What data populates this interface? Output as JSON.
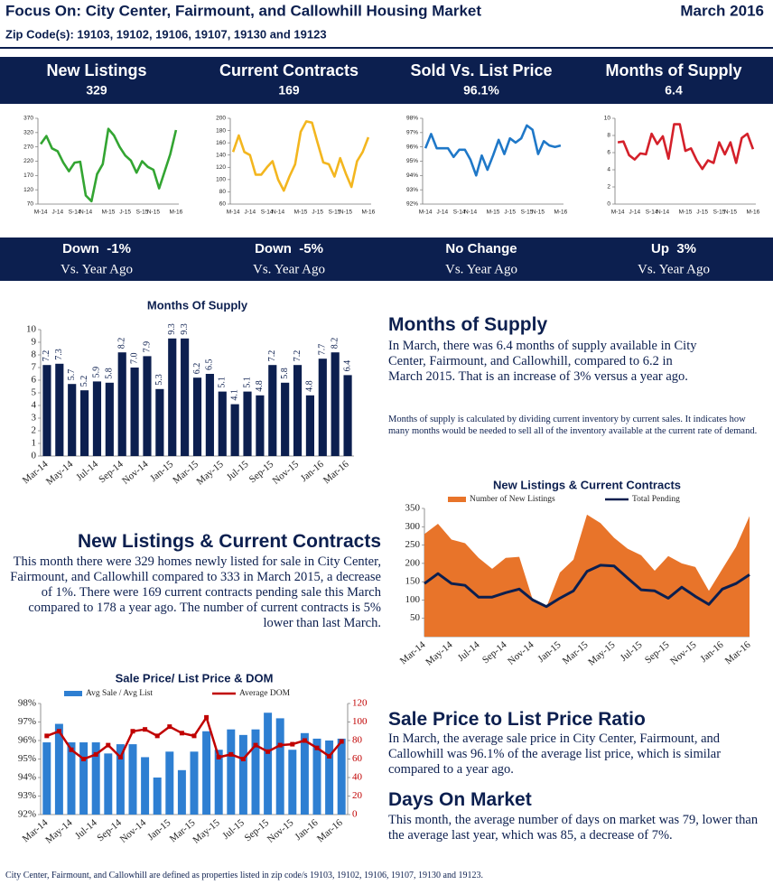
{
  "header": {
    "title": "Focus On: City Center, Fairmount, and Callowhill Housing Market",
    "date": "March 2016",
    "subtitle": "Zip Code(s): 19103, 19102, 19106, 19107, 19130 and 19123"
  },
  "kpis": [
    {
      "title": "New Listings",
      "value": "329",
      "change": "Down  -1%",
      "compare": "Vs. Year Ago"
    },
    {
      "title": "Current Contracts",
      "value": "169",
      "change": "Down  -5%",
      "compare": "Vs. Year Ago"
    },
    {
      "title": "Sold Vs. List Price",
      "value": "96.1%",
      "change": "No Change",
      "compare": "Vs. Year Ago"
    },
    {
      "title": "Months of Supply",
      "value": "6.4",
      "change": "Up  3%",
      "compare": "Vs. Year Ago"
    }
  ],
  "chart_data": [
    {
      "type": "line",
      "categories": [
        "M-14",
        null,
        null,
        "J-14",
        null,
        null,
        "S-14",
        null,
        "N-14",
        null,
        null,
        null,
        "M-15",
        null,
        null,
        "J-15",
        null,
        null,
        "S-15",
        null,
        "N-15",
        null,
        null,
        null,
        "M-16"
      ],
      "values": [
        280,
        308,
        265,
        255,
        215,
        185,
        215,
        218,
        100,
        80,
        175,
        210,
        333,
        310,
        270,
        240,
        222,
        180,
        220,
        200,
        190,
        125,
        185,
        245,
        329
      ],
      "color": "#33a532",
      "ylim": [
        70,
        370
      ],
      "yticks": [
        70,
        120,
        170,
        220,
        270,
        320,
        370
      ]
    },
    {
      "type": "line",
      "categories": [
        "M-14",
        null,
        null,
        "J-14",
        null,
        null,
        "S-14",
        null,
        "N-14",
        null,
        null,
        null,
        "M-15",
        null,
        null,
        "J-15",
        null,
        null,
        "S-15",
        null,
        "N-15",
        null,
        null,
        null,
        "M-16"
      ],
      "values": [
        145,
        172,
        145,
        140,
        108,
        108,
        120,
        130,
        100,
        82,
        105,
        125,
        178,
        195,
        193,
        160,
        128,
        125,
        105,
        135,
        110,
        88,
        130,
        145,
        169
      ],
      "color": "#f3b61f",
      "ylim": [
        60,
        200
      ],
      "yticks": [
        60,
        80,
        100,
        120,
        140,
        160,
        180,
        200
      ]
    },
    {
      "type": "line",
      "categories": [
        "M-14",
        null,
        null,
        "J-14",
        null,
        null,
        "S-14",
        null,
        "N-14",
        null,
        null,
        null,
        "M-15",
        null,
        null,
        "J-15",
        null,
        null,
        "S-15",
        null,
        "N-15",
        null,
        null,
        null,
        "M-16"
      ],
      "values": [
        95.9,
        96.9,
        95.9,
        95.9,
        95.9,
        95.3,
        95.8,
        95.8,
        95.1,
        94.0,
        95.4,
        94.4,
        95.4,
        96.5,
        95.5,
        96.6,
        96.3,
        96.6,
        97.5,
        97.2,
        95.5,
        96.4,
        96.1,
        96.0,
        96.1
      ],
      "color": "#1f78c8",
      "ylim": [
        92,
        98
      ],
      "yticks": [
        {
          "value": 92,
          "label": "92%"
        },
        {
          "value": 93,
          "label": "93%"
        },
        {
          "value": 94,
          "label": "94%"
        },
        {
          "value": 95,
          "label": "95%"
        },
        {
          "value": 96,
          "label": "96%"
        },
        {
          "value": 97,
          "label": "97%"
        },
        {
          "value": 98,
          "label": "98%"
        }
      ]
    },
    {
      "type": "line",
      "categories": [
        "M-14",
        null,
        null,
        "J-14",
        null,
        null,
        "S-14",
        null,
        "N-14",
        null,
        null,
        null,
        "M-15",
        null,
        null,
        "J-15",
        null,
        null,
        "S-15",
        null,
        "N-15",
        null,
        null,
        null,
        "M-16"
      ],
      "values": [
        7.2,
        7.3,
        5.7,
        5.2,
        5.9,
        5.8,
        8.2,
        7.0,
        7.9,
        5.3,
        9.3,
        9.3,
        6.2,
        6.5,
        5.1,
        4.1,
        5.1,
        4.8,
        7.2,
        5.8,
        7.2,
        4.8,
        7.7,
        8.2,
        6.4
      ],
      "color": "#d4202a",
      "ylim": [
        0,
        10
      ],
      "yticks": [
        0,
        2,
        4,
        6,
        8,
        10
      ]
    },
    {
      "type": "bar",
      "title": "Months Of Supply",
      "categories": [
        "Mar-14",
        null,
        "May-14",
        null,
        "Jul-14",
        null,
        "Sep-14",
        null,
        "Nov-14",
        null,
        "Jan-15",
        null,
        "Mar-15",
        null,
        "May-15",
        null,
        "Jul-15",
        null,
        "Sep-15",
        null,
        "Nov-15",
        null,
        "Jan-16",
        null,
        "Mar-16"
      ],
      "values": [
        7.2,
        7.3,
        5.7,
        5.2,
        5.9,
        5.8,
        8.2,
        7.0,
        7.9,
        5.3,
        9.3,
        9.3,
        6.2,
        6.5,
        5.1,
        4.1,
        5.1,
        4.8,
        7.2,
        5.8,
        7.2,
        4.8,
        7.7,
        8.2,
        6.4
      ],
      "value_labels": [
        "7.2",
        "7.3",
        "5.7",
        "5.2",
        "5.9",
        "5.8",
        "8.2",
        "7.0",
        "7.9",
        "5.3",
        "9.3",
        "9.3",
        "6.2",
        "6.5",
        "5.1",
        "4.1",
        "5.1",
        "4.8",
        "7.2",
        "5.8",
        "7.2",
        "4.8",
        "7.7",
        "8.2",
        "6.4"
      ],
      "color": "#0c1f4f",
      "ylim": [
        0,
        10
      ],
      "yticks": [
        0,
        1,
        2,
        3,
        4,
        5,
        6,
        7,
        8,
        9,
        10
      ]
    },
    {
      "type": "combo",
      "title": "New Listings & Current Contracts",
      "legend": "top",
      "categories": [
        "Mar-14",
        null,
        "May-14",
        null,
        "Jul-14",
        null,
        "Sep-14",
        null,
        "Nov-14",
        null,
        "Jan-15",
        null,
        "Mar-15",
        null,
        "May-15",
        null,
        "Jul-15",
        null,
        "Sep-15",
        null,
        "Nov-15",
        null,
        "Jan-16",
        null,
        "Mar-16"
      ],
      "series": [
        {
          "name": "Number of New Listings",
          "type": "area",
          "color": "#e8742a",
          "values": [
            280,
            308,
            265,
            255,
            215,
            185,
            215,
            218,
            100,
            80,
            175,
            210,
            333,
            310,
            270,
            240,
            222,
            180,
            220,
            200,
            190,
            125,
            185,
            245,
            329
          ]
        },
        {
          "name": "Total Pending",
          "type": "line",
          "color": "#0c1f4f",
          "values": [
            145,
            172,
            145,
            140,
            108,
            108,
            120,
            130,
            100,
            82,
            105,
            125,
            178,
            195,
            193,
            160,
            128,
            125,
            105,
            135,
            110,
            88,
            130,
            145,
            169
          ]
        }
      ],
      "ylim": [
        0,
        350
      ],
      "yticks": [
        50,
        100,
        150,
        200,
        250,
        300,
        350
      ]
    },
    {
      "type": "combo",
      "title": "Sale Price/ List Price & DOM",
      "legend": "top",
      "categories": [
        "Mar-14",
        null,
        "May-14",
        null,
        "Jul-14",
        null,
        "Sep-14",
        null,
        "Nov-14",
        null,
        "Jan-15",
        null,
        "Mar-15",
        null,
        "May-15",
        null,
        "Jul-15",
        null,
        "Sep-15",
        null,
        "Nov-15",
        null,
        "Jan-16",
        null,
        "Mar-16"
      ],
      "series": [
        {
          "name": "Avg Sale / Avg List",
          "type": "bar",
          "color": "#2e7fd2",
          "values": [
            95.9,
            96.9,
            95.9,
            95.9,
            95.9,
            95.3,
            95.8,
            95.8,
            95.1,
            94.0,
            95.4,
            94.4,
            95.4,
            96.5,
            95.5,
            96.6,
            96.3,
            96.6,
            97.5,
            97.2,
            95.5,
            96.4,
            96.1,
            96.0,
            96.1
          ]
        },
        {
          "name": "Average DOM",
          "type": "line",
          "axis": "y2",
          "markers": true,
          "color": "#c00000",
          "values": [
            85,
            90,
            70,
            60,
            65,
            75,
            62,
            90,
            92,
            85,
            95,
            88,
            85,
            105,
            62,
            65,
            60,
            75,
            68,
            75,
            76,
            80,
            72,
            63,
            79
          ]
        }
      ],
      "ylim": [
        92,
        98
      ],
      "yticks": [
        {
          "value": 92,
          "label": "92%"
        },
        {
          "value": 93,
          "label": "93%"
        },
        {
          "value": 94,
          "label": "94%"
        },
        {
          "value": 95,
          "label": "95%"
        },
        {
          "value": 96,
          "label": "96%"
        },
        {
          "value": 97,
          "label": "97%"
        },
        {
          "value": 98,
          "label": "98%"
        }
      ],
      "y2lim": [
        0,
        120
      ],
      "y2ticks": [
        0,
        20,
        40,
        60,
        80,
        100,
        120
      ]
    }
  ],
  "sections": {
    "months_supply": {
      "heading": "Months of Supply",
      "body": "In March, there was 6.4 months of supply available in City Center, Fairmount, and Callowhill, compared to 6.2 in March 2015. That is an increase of 3% versus a year ago.",
      "note": "Months of supply is calculated by dividing current inventory by current sales. It indicates how many months would be needed to sell all of the inventory available at the current rate of demand."
    },
    "new_listings": {
      "heading": "New Listings & Current Contracts",
      "body": "This month there were 329 homes newly listed for sale in City Center, Fairmount, and Callowhill compared to 333 in March 2015, a decrease of 1%. There were 169 current contracts pending sale this March compared to 178 a year ago. The number of current contracts is 5% lower than last March."
    },
    "sale_price": {
      "heading": "Sale Price to List Price Ratio",
      "body": "In March, the average sale price in City Center, Fairmount, and Callowhill was 96.1% of the average list price, which is similar compared to a year ago."
    },
    "dom": {
      "heading": "Days On Market",
      "body": "This month, the average number of days on market was 79, lower than the average last year, which was 85, a decrease of 7%."
    }
  },
  "footer": "City Center, Fairmount, and Callowhill are defined as properties listed in zip code/s 19103, 19102, 19106, 19107, 19130 and 19123."
}
